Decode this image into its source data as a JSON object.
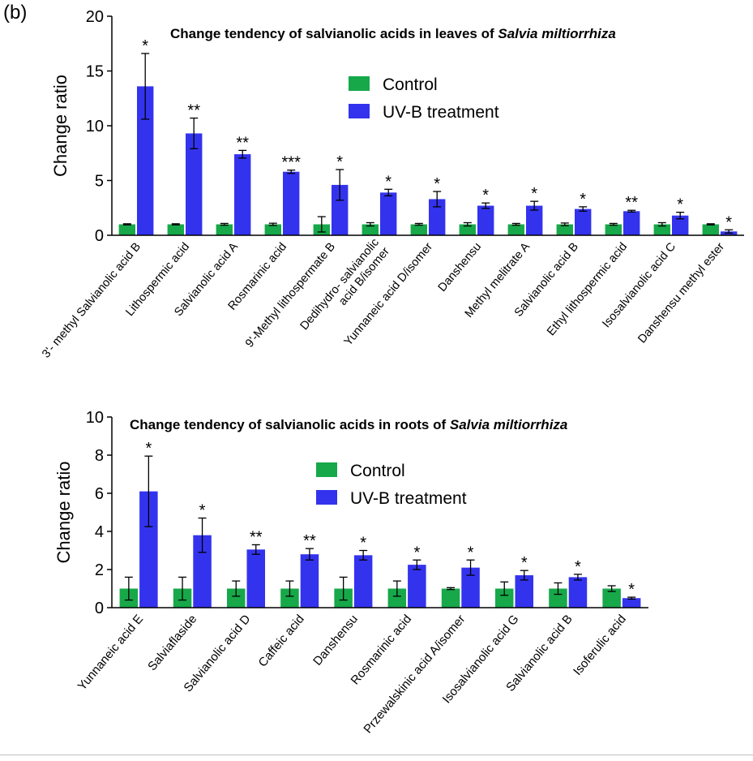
{
  "panel_label": "(b)",
  "colors": {
    "control": "#17a84a",
    "uvb": "#3333ee",
    "axis": "#000000"
  },
  "chart_data": [
    {
      "type": "bar",
      "title_plain": "Change tendency of salvianolic acids in leaves of ",
      "title_italic": "Salvia miltiorrhiza",
      "ylabel": "Change  ratio",
      "ylim": [
        0,
        20
      ],
      "yticks": [
        0,
        5,
        10,
        15,
        20
      ],
      "legend": [
        "Control",
        "UV-B treatment"
      ],
      "legend_position": "top-center",
      "categories": [
        "3'- methyl Salvianolic acid B",
        "Lithospermic acid",
        "Salvianolic acid A",
        "Rosmarinic acid",
        "9'-Methyl lithospermate B",
        "Dedihydro- salvianolic|acid B/isomer",
        "Yunnaneic acid D/isomer",
        "Danshensu",
        "Methyl melitrate A",
        "Salvianolic acid B",
        "Ethyl lithospermic acid",
        "Isosalvianolic acid C",
        "Danshensu methyl ester"
      ],
      "series": [
        {
          "name": "Control",
          "values": [
            1,
            1,
            1,
            1,
            1,
            1,
            1,
            1,
            1,
            1,
            1,
            1,
            1
          ],
          "errors": [
            0.05,
            0.05,
            0.08,
            0.1,
            0.7,
            0.15,
            0.08,
            0.15,
            0.08,
            0.12,
            0.08,
            0.15,
            0.05
          ]
        },
        {
          "name": "UV-B treatment",
          "values": [
            13.6,
            9.3,
            7.4,
            5.8,
            4.6,
            3.9,
            3.3,
            2.7,
            2.7,
            2.4,
            2.2,
            1.8,
            0.35
          ],
          "errors": [
            3.0,
            1.4,
            0.35,
            0.15,
            1.4,
            0.3,
            0.7,
            0.25,
            0.4,
            0.2,
            0.08,
            0.3,
            0.15
          ]
        }
      ],
      "significance": [
        "*",
        "**",
        "**",
        "***",
        "*",
        "*",
        "*",
        "*",
        "*",
        "*",
        "**",
        "*",
        "*"
      ]
    },
    {
      "type": "bar",
      "title_plain": "Change tendency of salvianolic acids in roots of ",
      "title_italic": "Salvia miltiorrhiza",
      "ylabel": "Change  ratio",
      "ylim": [
        0,
        10
      ],
      "yticks": [
        0,
        2,
        4,
        6,
        8,
        10
      ],
      "legend": [
        "Control",
        "UV-B treatment"
      ],
      "legend_position": "top-center",
      "categories": [
        "Yunnaneic acid E",
        "Salviaflaside",
        "Salvianolic acid D",
        "Caffeic acid",
        "Danshensu",
        "Rosmarinic acid",
        "Przewalskinic acid A/isomer",
        "Isosalvianolic acid G",
        "Salvianolic acid B",
        "Isoferulic acid"
      ],
      "series": [
        {
          "name": "Control",
          "values": [
            1,
            1,
            1,
            1,
            1,
            1,
            1,
            1,
            1,
            1
          ],
          "errors": [
            0.6,
            0.6,
            0.4,
            0.4,
            0.6,
            0.4,
            0.05,
            0.35,
            0.3,
            0.15
          ]
        },
        {
          "name": "UV-B treatment",
          "values": [
            6.1,
            3.8,
            3.05,
            2.8,
            2.75,
            2.25,
            2.1,
            1.7,
            1.6,
            0.5
          ],
          "errors": [
            1.85,
            0.9,
            0.25,
            0.3,
            0.25,
            0.25,
            0.4,
            0.25,
            0.15,
            0.05
          ]
        }
      ],
      "significance": [
        "*",
        "*",
        "**",
        "**",
        "*",
        "*",
        "*",
        "*",
        "*",
        "*"
      ]
    }
  ]
}
